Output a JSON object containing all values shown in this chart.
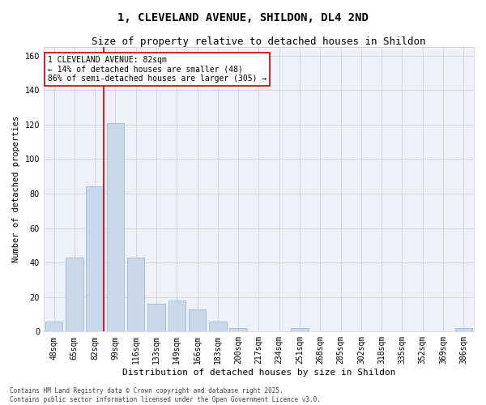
{
  "title1": "1, CLEVELAND AVENUE, SHILDON, DL4 2ND",
  "title2": "Size of property relative to detached houses in Shildon",
  "xlabel": "Distribution of detached houses by size in Shildon",
  "ylabel": "Number of detached properties",
  "categories": [
    "48sqm",
    "65sqm",
    "82sqm",
    "99sqm",
    "116sqm",
    "133sqm",
    "149sqm",
    "166sqm",
    "183sqm",
    "200sqm",
    "217sqm",
    "234sqm",
    "251sqm",
    "268sqm",
    "285sqm",
    "302sqm",
    "318sqm",
    "335sqm",
    "352sqm",
    "369sqm",
    "386sqm"
  ],
  "values": [
    6,
    43,
    84,
    121,
    43,
    16,
    18,
    13,
    6,
    2,
    0,
    0,
    2,
    0,
    0,
    0,
    0,
    0,
    0,
    0,
    2
  ],
  "bar_color": "#c9d9ea",
  "bar_edgecolor": "#a0b8d0",
  "vline_index": 2,
  "vline_color": "#cc0000",
  "annotation_text": "1 CLEVELAND AVENUE: 82sqm\n← 14% of detached houses are smaller (48)\n86% of semi-detached houses are larger (305) →",
  "annotation_box_facecolor": "#ffffff",
  "annotation_box_edgecolor": "#cc0000",
  "ylim": [
    0,
    165
  ],
  "yticks": [
    0,
    20,
    40,
    60,
    80,
    100,
    120,
    140,
    160
  ],
  "grid_color": "#cccccc",
  "bg_color": "#eef2f8",
  "footer": "Contains HM Land Registry data © Crown copyright and database right 2025.\nContains public sector information licensed under the Open Government Licence v3.0.",
  "title1_fontsize": 10,
  "title2_fontsize": 9,
  "xlabel_fontsize": 8,
  "ylabel_fontsize": 7.5,
  "tick_fontsize": 7,
  "annotation_fontsize": 7,
  "footer_fontsize": 5.5
}
